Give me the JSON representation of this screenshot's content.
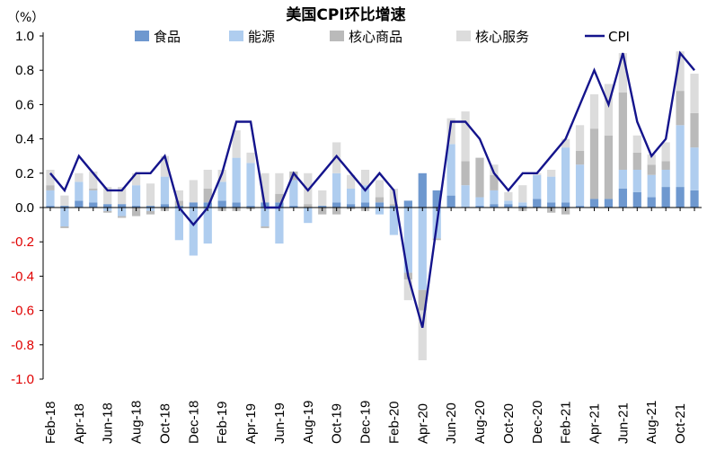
{
  "chart_data": {
    "type": "bar",
    "title": "美国CPI环比增速",
    "unit": "（%）",
    "ylim": [
      -1.0,
      1.0
    ],
    "yticks": [
      1.0,
      0.8,
      0.6,
      0.4,
      0.2,
      0.0,
      -0.2,
      -0.4,
      -0.6,
      -0.8,
      -1.0
    ],
    "ytick_labels": [
      "1.0",
      "0.8",
      "0.6",
      "0.4",
      "0.2",
      "0.0",
      "-0.2",
      "-0.4",
      "-0.6",
      "-0.8",
      "-1.0"
    ],
    "grid": false,
    "legend_position": "top",
    "categories": [
      "Feb-18",
      "Mar-18",
      "Apr-18",
      "May-18",
      "Jun-18",
      "Jul-18",
      "Aug-18",
      "Sep-18",
      "Oct-18",
      "Nov-18",
      "Dec-18",
      "Jan-19",
      "Feb-19",
      "Mar-19",
      "Apr-19",
      "May-19",
      "Jun-19",
      "Jul-19",
      "Aug-19",
      "Sep-19",
      "Oct-19",
      "Nov-19",
      "Dec-19",
      "Jan-20",
      "Feb-20",
      "Mar-20",
      "Apr-20",
      "May-20",
      "Jun-20",
      "Jul-20",
      "Aug-20",
      "Sep-20",
      "Oct-20",
      "Nov-20",
      "Dec-20",
      "Jan-21",
      "Feb-21",
      "Mar-21",
      "Apr-21",
      "May-21",
      "Jun-21",
      "Jul-21",
      "Aug-21",
      "Sep-21",
      "Oct-21",
      "Nov-21"
    ],
    "tick_labels": [
      "Feb-18",
      "Apr-18",
      "Jun-18",
      "Aug-18",
      "Oct-18",
      "Dec-18",
      "Feb-19",
      "Apr-19",
      "Jun-19",
      "Aug-19",
      "Oct-19",
      "Dec-19",
      "Feb-20",
      "Apr-20",
      "Jun-20",
      "Aug-20",
      "Oct-20",
      "Dec-20",
      "Feb-21",
      "Apr-21",
      "Jun-21",
      "Aug-21",
      "Oct-21"
    ],
    "series": [
      {
        "name": "食品",
        "kind": "stacked_bar",
        "color": "#6e98cf",
        "values": [
          0.01,
          0.01,
          0.04,
          0.03,
          0.02,
          0.02,
          0.01,
          0.01,
          0.02,
          0.01,
          0.03,
          0.03,
          0.04,
          0.03,
          0.01,
          0.03,
          0.03,
          0.01,
          0.0,
          0.01,
          0.03,
          0.02,
          0.03,
          0.03,
          0.01,
          0.04,
          0.2,
          0.1,
          0.07,
          0.0,
          0.01,
          0.02,
          0.02,
          0.01,
          0.05,
          0.03,
          0.03,
          0.01,
          0.05,
          0.05,
          0.11,
          0.09,
          0.06,
          0.12,
          0.12,
          0.1
        ]
      },
      {
        "name": "能源",
        "kind": "stacked_bar",
        "color": "#afcdef",
        "values": [
          0.09,
          -0.11,
          0.11,
          0.07,
          -0.02,
          -0.05,
          0.12,
          -0.02,
          0.16,
          -0.19,
          -0.28,
          -0.21,
          0.11,
          0.26,
          0.25,
          -0.11,
          -0.21,
          0.15,
          -0.09,
          0.0,
          0.17,
          0.09,
          0.1,
          -0.04,
          -0.16,
          -0.38,
          -0.48,
          -0.18,
          0.3,
          0.13,
          0.05,
          0.08,
          0.02,
          0.02,
          0.14,
          0.15,
          0.32,
          0.24,
          0.0,
          0.0,
          0.11,
          0.13,
          0.13,
          0.1,
          0.36,
          0.25
        ]
      },
      {
        "name": "核心商品",
        "kind": "stacked_bar",
        "color": "#bababa",
        "values": [
          0.03,
          -0.01,
          0.0,
          0.01,
          -0.01,
          -0.01,
          -0.05,
          -0.02,
          -0.02,
          0.03,
          0.0,
          0.08,
          -0.02,
          -0.02,
          -0.01,
          -0.01,
          0.05,
          0.05,
          0.02,
          -0.04,
          -0.04,
          -0.01,
          -0.02,
          0.03,
          0.01,
          -0.04,
          -0.12,
          -0.01,
          0.0,
          0.14,
          0.23,
          0.09,
          0.0,
          -0.02,
          0.0,
          -0.03,
          -0.04,
          0.08,
          0.41,
          0.37,
          0.45,
          0.1,
          0.06,
          0.05,
          0.2,
          0.2
        ]
      },
      {
        "name": "核心服务",
        "kind": "stacked_bar",
        "color": "#dcdcdc",
        "values": [
          0.09,
          0.06,
          0.05,
          0.1,
          0.1,
          0.1,
          0.07,
          0.13,
          0.12,
          0.06,
          0.13,
          0.11,
          0.07,
          0.16,
          0.06,
          0.17,
          0.12,
          0.0,
          0.18,
          0.09,
          0.18,
          0.08,
          0.09,
          0.1,
          0.09,
          -0.12,
          -0.29,
          0.0,
          0.15,
          0.29,
          0.0,
          0.06,
          0.05,
          0.1,
          0.01,
          0.04,
          0.05,
          0.15,
          0.2,
          0.3,
          0.23,
          0.1,
          0.06,
          0.11,
          0.23,
          0.23
        ]
      },
      {
        "name": "CPI",
        "kind": "line",
        "color": "#14148c",
        "values": [
          0.2,
          0.1,
          0.3,
          0.2,
          0.1,
          0.1,
          0.2,
          0.2,
          0.3,
          0.0,
          -0.1,
          0.0,
          0.2,
          0.5,
          0.5,
          0.0,
          0.0,
          0.2,
          0.1,
          0.2,
          0.3,
          0.2,
          0.1,
          0.2,
          0.1,
          -0.4,
          -0.7,
          -0.1,
          0.5,
          0.5,
          0.4,
          0.2,
          0.1,
          0.2,
          0.2,
          0.3,
          0.4,
          0.6,
          0.8,
          0.6,
          0.9,
          0.5,
          0.3,
          0.4,
          0.9,
          0.8
        ]
      }
    ]
  }
}
